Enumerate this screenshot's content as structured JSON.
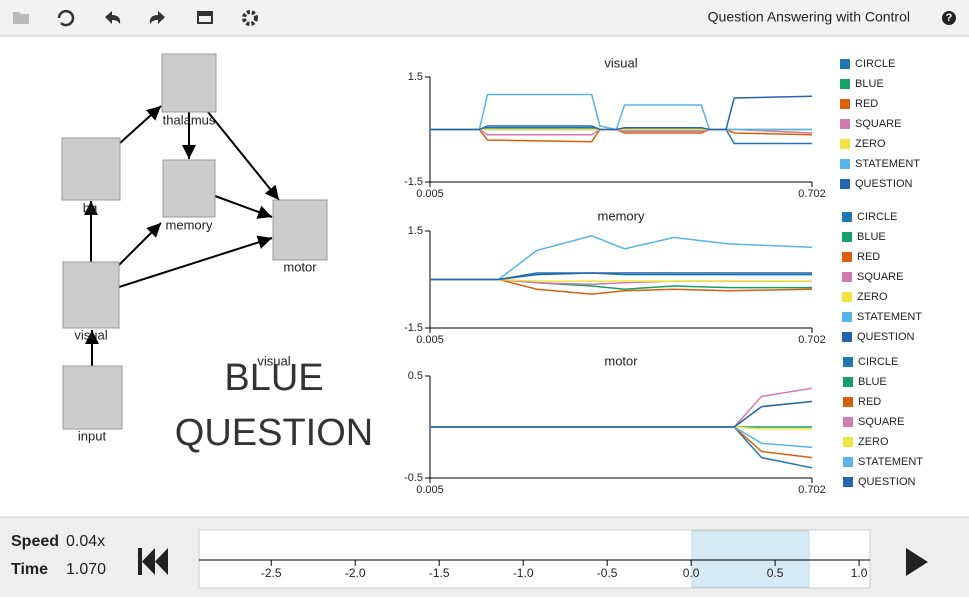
{
  "toolbar": {
    "title": "Question Answering with Control"
  },
  "network": {
    "nodes": [
      {
        "label": "thalamus"
      },
      {
        "label": "bg"
      },
      {
        "label": "memory"
      },
      {
        "label": "motor"
      },
      {
        "label": "visual"
      },
      {
        "label": "input"
      }
    ],
    "overlay": {
      "caption": "visual",
      "lines": [
        "BLUE",
        "QUESTION"
      ]
    }
  },
  "chart_data": [
    {
      "type": "line",
      "title": "visual",
      "xlim": [
        0.005,
        0.702
      ],
      "xticks": [
        0.005,
        0.702
      ],
      "ylim": [
        -1.5,
        1.5
      ],
      "yticks": [
        -1.5,
        1.5
      ],
      "x": [
        0.005,
        0.095,
        0.11,
        0.3,
        0.315,
        0.345,
        0.36,
        0.5,
        0.515,
        0.545,
        0.56,
        0.702
      ],
      "series": [
        {
          "name": "CIRCLE",
          "color": "#1f77b4",
          "values": [
            0,
            0,
            0.05,
            0.05,
            0,
            0,
            0,
            0,
            0,
            0,
            -0.4,
            -0.4
          ]
        },
        {
          "name": "BLUE",
          "color": "#16a06b",
          "values": [
            0,
            0,
            0,
            0,
            0,
            0,
            0,
            0,
            0,
            0,
            0,
            0
          ]
        },
        {
          "name": "RED",
          "color": "#d95f0e",
          "values": [
            0,
            0,
            -0.3,
            -0.35,
            0,
            0,
            -0.1,
            -0.1,
            0,
            0,
            -0.1,
            -0.15
          ]
        },
        {
          "name": "SQUARE",
          "color": "#d27ab0",
          "values": [
            0,
            0,
            -0.15,
            -0.15,
            0,
            0,
            -0.05,
            -0.05,
            0,
            0,
            0,
            -0.1
          ]
        },
        {
          "name": "ZERO",
          "color": "#f0e442",
          "values": [
            0,
            0,
            0,
            0,
            0,
            0,
            0,
            0,
            0,
            0,
            0,
            0
          ]
        },
        {
          "name": "STATEMENT",
          "color": "#56b4e9",
          "values": [
            0,
            0,
            1.0,
            1.0,
            0.1,
            0,
            0.7,
            0.7,
            0,
            0,
            0,
            0
          ]
        },
        {
          "name": "QUESTION",
          "color": "#2166ac",
          "values": [
            0,
            0,
            0.1,
            0.1,
            0,
            0,
            0.05,
            0.05,
            0,
            0,
            0.9,
            0.95
          ]
        }
      ]
    },
    {
      "type": "line",
      "title": "memory",
      "xlim": [
        0.005,
        0.702
      ],
      "xticks": [
        0.005,
        0.702
      ],
      "ylim": [
        -1.5,
        1.5
      ],
      "yticks": [
        -1.5,
        1.5
      ],
      "x": [
        0.005,
        0.13,
        0.2,
        0.3,
        0.36,
        0.45,
        0.55,
        0.702
      ],
      "series": [
        {
          "name": "CIRCLE",
          "color": "#1f77b4",
          "values": [
            0,
            0,
            0.2,
            0.2,
            0.15,
            0.15,
            0.15,
            0.15
          ]
        },
        {
          "name": "BLUE",
          "color": "#16a06b",
          "values": [
            0,
            0,
            -0.1,
            -0.2,
            -0.3,
            -0.2,
            -0.25,
            -0.25
          ]
        },
        {
          "name": "RED",
          "color": "#d95f0e",
          "values": [
            0,
            0,
            -0.3,
            -0.45,
            -0.35,
            -0.3,
            -0.35,
            -0.3
          ]
        },
        {
          "name": "SQUARE",
          "color": "#d27ab0",
          "values": [
            0,
            0,
            -0.1,
            -0.15,
            -0.1,
            -0.05,
            -0.05,
            -0.05
          ]
        },
        {
          "name": "ZERO",
          "color": "#f0e442",
          "values": [
            0,
            0,
            -0.05,
            -0.05,
            -0.05,
            -0.05,
            -0.05,
            -0.05
          ]
        },
        {
          "name": "STATEMENT",
          "color": "#56b4e9",
          "values": [
            0,
            0,
            0.9,
            1.35,
            0.95,
            1.3,
            1.1,
            1.0
          ]
        },
        {
          "name": "QUESTION",
          "color": "#2166ac",
          "values": [
            0,
            0,
            0.15,
            0.2,
            0.2,
            0.2,
            0.2,
            0.2
          ]
        }
      ]
    },
    {
      "type": "line",
      "title": "motor",
      "xlim": [
        0.005,
        0.702
      ],
      "xticks": [
        0.005,
        0.702
      ],
      "ylim": [
        -0.5,
        0.5
      ],
      "yticks": [
        -0.5,
        0.5
      ],
      "x": [
        0.005,
        0.56,
        0.61,
        0.702
      ],
      "series": [
        {
          "name": "CIRCLE",
          "color": "#1f77b4",
          "values": [
            0,
            0,
            -0.3,
            -0.4
          ]
        },
        {
          "name": "BLUE",
          "color": "#16a06b",
          "values": [
            0,
            0,
            0,
            0
          ]
        },
        {
          "name": "RED",
          "color": "#d95f0e",
          "values": [
            0,
            0,
            -0.24,
            -0.3
          ]
        },
        {
          "name": "SQUARE",
          "color": "#d27ab0",
          "values": [
            0,
            0,
            0.3,
            0.38
          ]
        },
        {
          "name": "ZERO",
          "color": "#f0e442",
          "values": [
            0,
            0,
            -0.02,
            -0.02
          ]
        },
        {
          "name": "STATEMENT",
          "color": "#56b4e9",
          "values": [
            0,
            0,
            -0.16,
            -0.2
          ]
        },
        {
          "name": "QUESTION",
          "color": "#2166ac",
          "values": [
            0,
            0,
            0.2,
            0.25
          ]
        }
      ]
    }
  ],
  "controls": {
    "speed_label": "Speed",
    "speed": "0.04x",
    "time_label": "Time",
    "time": "1.070",
    "timeline": {
      "xlim": [
        -2.93,
        1.065
      ],
      "window": [
        0.005,
        0.702
      ],
      "xticks": [
        -2.5,
        {
          "value": -2,
          "label": "-2.0"
        },
        -1.5,
        {
          "value": -1,
          "label": "-1.0"
        },
        -0.5,
        {
          "value": 0,
          "label": "0.0"
        },
        0.5,
        {
          "value": 1,
          "label": "1.0"
        }
      ]
    }
  }
}
